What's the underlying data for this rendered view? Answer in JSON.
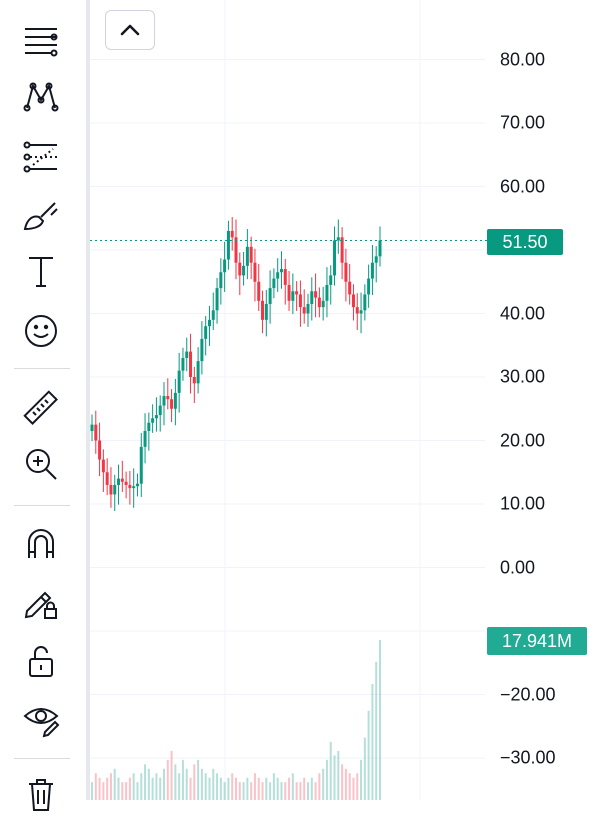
{
  "toolbar": {
    "tools": [
      {
        "name": "trend-line-tool-icon"
      },
      {
        "name": "pattern-tool-icon"
      },
      {
        "name": "prediction-tool-icon"
      },
      {
        "name": "brush-tool-icon"
      },
      {
        "name": "text-tool-icon"
      },
      {
        "name": "emoji-tool-icon"
      },
      {
        "name": "ruler-tool-icon"
      },
      {
        "name": "zoom-in-tool-icon"
      },
      {
        "name": "magnet-mode-icon"
      },
      {
        "name": "lock-drawings-icon"
      },
      {
        "name": "unlock-icon"
      },
      {
        "name": "hide-drawings-icon"
      },
      {
        "name": "delete-drawings-icon"
      }
    ]
  },
  "collapse_button": {
    "icon": "chevron-up-icon"
  },
  "price_axis": {
    "labels": [
      "80.00",
      "70.00",
      "60.00",
      "40.00",
      "30.00",
      "20.00",
      "10.00",
      "0.00",
      "−20.00",
      "−30.00"
    ]
  },
  "last_price": "51.50",
  "last_volume": "17.941M",
  "colors": {
    "up": "#089981",
    "down": "#f23645",
    "grid": "#f0f3fa",
    "price_line": "#089981"
  },
  "chart_data": {
    "type": "candlestick",
    "title": "",
    "ylim": [
      -35,
      92
    ],
    "yticks": [
      80,
      70,
      60,
      50,
      40,
      30,
      20,
      10,
      0,
      -10,
      -20,
      -30
    ],
    "last_close": 51.5,
    "last_volume": "17.941M",
    "close_series": [
      22.5,
      20.0,
      17.0,
      15.0,
      13.0,
      11.5,
      13.0,
      14.0,
      13.5,
      13.0,
      12.5,
      12.8,
      13.2,
      19.0,
      21.5,
      22.8,
      23.5,
      24.0,
      25.5,
      27.0,
      26.5,
      25.0,
      27.5,
      31.0,
      33.0,
      34.0,
      30.0,
      29.0,
      32.5,
      36.0,
      38.0,
      39.0,
      40.5,
      44.0,
      46.5,
      48.5,
      53.0,
      52.0,
      48.0,
      46.0,
      47.5,
      50.5,
      48.0,
      45.0,
      42.0,
      39.0,
      41.5,
      44.0,
      45.5,
      46.5,
      47.0,
      44.5,
      42.0,
      43.5,
      43.0,
      41.0,
      40.0,
      41.5,
      43.5,
      42.5,
      41.0,
      42.0,
      44.5,
      46.0,
      51.5,
      52.0,
      48.0,
      45.0,
      43.0,
      41.0,
      40.0,
      40.5,
      43.0,
      45.5,
      48.0,
      49.0,
      51.5
    ],
    "volume_series": [
      2.0,
      3.0,
      2.5,
      2.0,
      2.5,
      3.0,
      3.5,
      2.5,
      2.0,
      2.0,
      2.5,
      3.0,
      2.0,
      3.0,
      4.0,
      3.5,
      2.5,
      3.0,
      2.5,
      3.5,
      4.5,
      5.5,
      4.0,
      3.0,
      4.5,
      3.5,
      2.5,
      4.0,
      4.5,
      3.5,
      3.0,
      2.5,
      3.5,
      3.0,
      2.5,
      2.0,
      2.5,
      3.0,
      2.5,
      2.0,
      2.0,
      2.5,
      2.0,
      3.0,
      2.5,
      2.0,
      2.5,
      2.0,
      3.0,
      2.5,
      2.0,
      2.0,
      2.5,
      3.0,
      2.0,
      2.0,
      2.5,
      2.0,
      2.5,
      2.0,
      3.0,
      3.5,
      4.5,
      6.5,
      5.0,
      5.5,
      4.0,
      3.5,
      3.0,
      2.5,
      3.0,
      4.5,
      7.0,
      10.0,
      13.0,
      15.5,
      17.941
    ]
  }
}
